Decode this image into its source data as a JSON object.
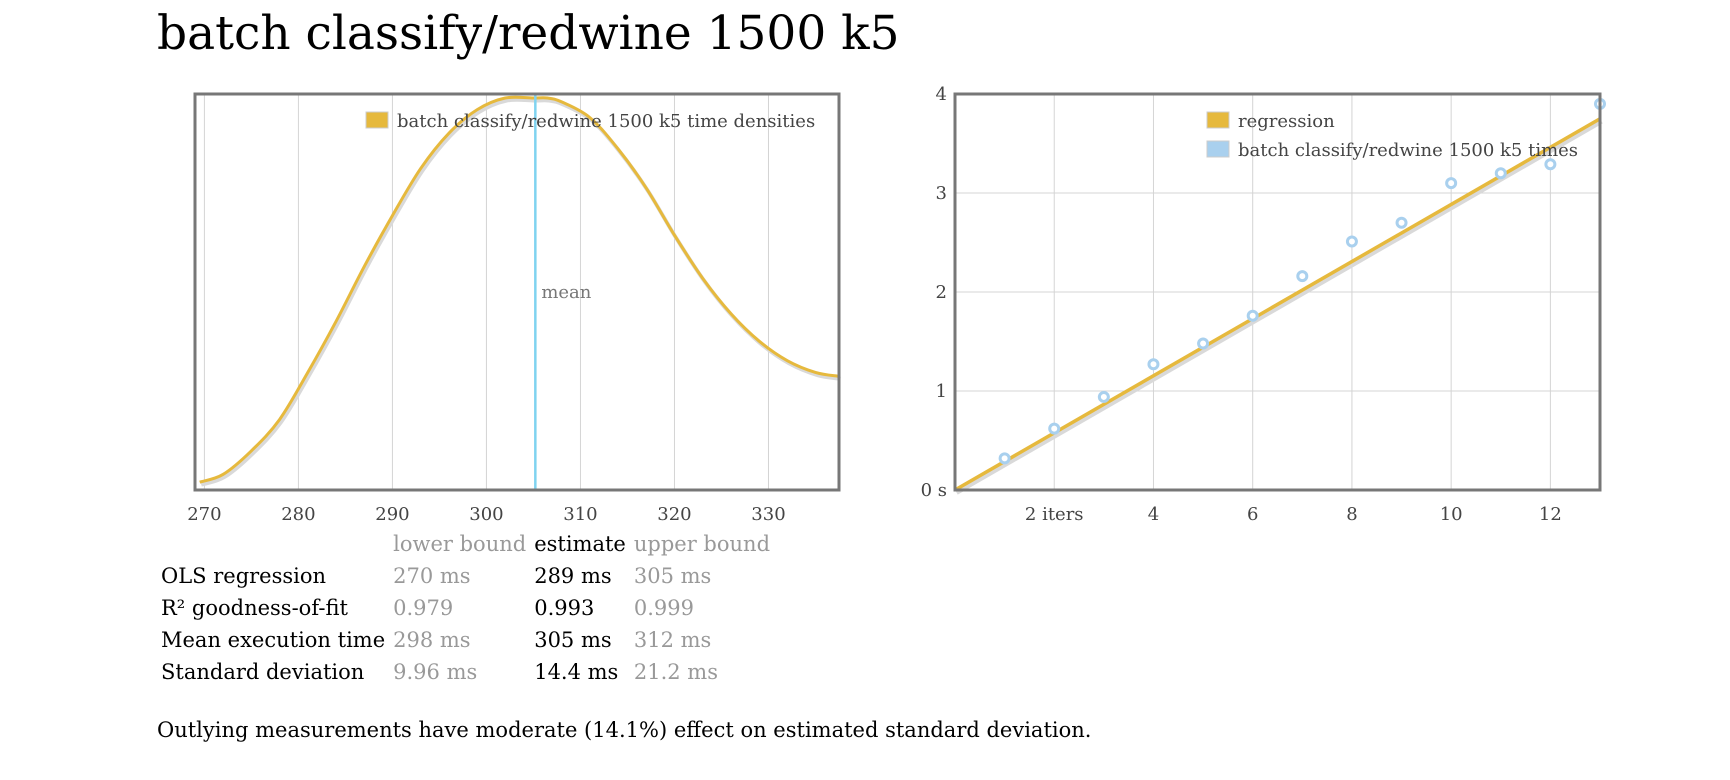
{
  "page": {
    "title": "batch classify/redwine 1500 k5"
  },
  "chart_data": [
    {
      "type": "line",
      "legend": "batch classify/redwine 1500 k5 time densities",
      "legend_position": "top-right",
      "xlim": [
        269,
        337.5
      ],
      "x_ticks": [
        270,
        280,
        290,
        300,
        310,
        320,
        330
      ],
      "x_tick_labels": [
        "270",
        "280",
        "290",
        "300",
        "310",
        "320",
        "330"
      ],
      "y_axis_visible": false,
      "grid": "vertical",
      "series": [
        {
          "name": "batch classify/redwine 1500 k5 time densities",
          "x": [
            269.5,
            272,
            275,
            278,
            281,
            284,
            287,
            290,
            293,
            296,
            299,
            302,
            305,
            306.5,
            308,
            311,
            314,
            317,
            320,
            323,
            326,
            329,
            332,
            335,
            337.5
          ],
          "y": [
            0.02,
            0.04,
            0.1,
            0.18,
            0.3,
            0.43,
            0.57,
            0.7,
            0.82,
            0.91,
            0.97,
            1.0,
            1.0,
            1.0,
            0.99,
            0.95,
            0.87,
            0.77,
            0.65,
            0.54,
            0.45,
            0.38,
            0.33,
            0.3,
            0.29
          ]
        }
      ],
      "mean": {
        "x": 305.2,
        "label": "mean"
      },
      "colors": {
        "line": "#e6b93d",
        "mean": "#7fd3f0"
      }
    },
    {
      "type": "scatter",
      "xlim": [
        0,
        13
      ],
      "ylim": [
        0,
        4
      ],
      "x_ticks": [
        2,
        4,
        6,
        8,
        10,
        12
      ],
      "x_tick_labels": [
        "2 iters",
        "4",
        "6",
        "8",
        "10",
        "12"
      ],
      "y_ticks": [
        0,
        1,
        2,
        3,
        4
      ],
      "y_tick_labels": [
        "0 s",
        "1",
        "2",
        "3",
        "4"
      ],
      "grid": true,
      "legend_position": "top-right",
      "series": [
        {
          "name": "regression",
          "type": "line",
          "x": [
            0,
            13
          ],
          "y": [
            0,
            3.75
          ]
        },
        {
          "name": "batch classify/redwine 1500 k5 times",
          "type": "scatter",
          "x": [
            1,
            2,
            3,
            4,
            5,
            6,
            7,
            8,
            9,
            10,
            11,
            12,
            13
          ],
          "y": [
            0.32,
            0.62,
            0.94,
            1.27,
            1.48,
            1.76,
            2.16,
            2.51,
            2.7,
            3.1,
            3.2,
            3.29,
            3.9
          ]
        }
      ],
      "colors": {
        "regression": "#e6b93d",
        "points": "#a9d0ee"
      }
    }
  ],
  "stats": {
    "headers": [
      "",
      "lower bound",
      "estimate",
      "upper bound"
    ],
    "rows": [
      {
        "label": "OLS regression",
        "lower": "270 ms",
        "estimate": "289 ms",
        "upper": "305 ms"
      },
      {
        "label": "R² goodness-of-fit",
        "lower": "0.979",
        "estimate": "0.993",
        "upper": "0.999"
      },
      {
        "label": "Mean execution time",
        "lower": "298 ms",
        "estimate": "305 ms",
        "upper": "312 ms"
      },
      {
        "label": "Standard deviation",
        "lower": "9.96 ms",
        "estimate": "14.4 ms",
        "upper": "21.2 ms"
      }
    ]
  },
  "footnote": "Outlying measurements have moderate (14.1%) effect on estimated standard deviation."
}
